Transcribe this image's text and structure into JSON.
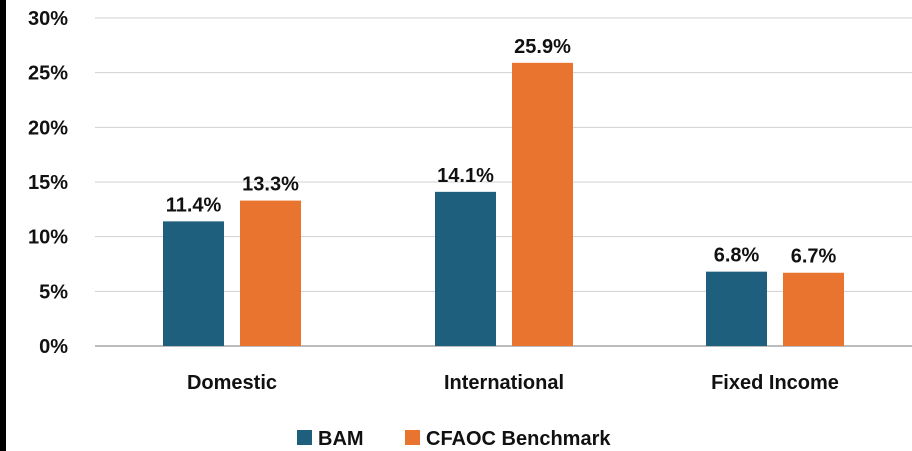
{
  "chart_data": {
    "type": "bar",
    "title": "",
    "xlabel": "",
    "ylabel": "",
    "categories": [
      "Domestic",
      "International",
      "Fixed Income"
    ],
    "series": [
      {
        "name": "BAM",
        "values": [
          11.4,
          14.1,
          6.8
        ],
        "labels": [
          "11.4%",
          "14.1%",
          "6.8%"
        ],
        "color": "#1f5f7e"
      },
      {
        "name": "CFAOC Benchmark",
        "values": [
          13.3,
          25.9,
          6.7
        ],
        "labels": [
          "13.3%",
          "25.9%",
          "6.7%"
        ],
        "color": "#e8742f"
      }
    ],
    "ylim": [
      0,
      30
    ],
    "yticks": [
      0,
      5,
      10,
      15,
      20,
      25,
      30
    ],
    "ytick_labels": [
      "0%",
      "5%",
      "10%",
      "15%",
      "20%",
      "25%",
      "30%"
    ],
    "grid": true,
    "legend_position": "bottom"
  }
}
